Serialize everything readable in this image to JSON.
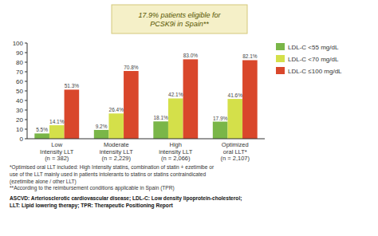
{
  "chart_data": {
    "type": "bar",
    "categories": [
      "Low\nIntensity LLT\n(n = 382)",
      "Moderate\nintensity LLT\n(n = 2,229)",
      "High\nintensity LLT\n(n = 2,066)",
      "Optimized\noral LLT*\n(n = 2,107)"
    ],
    "series": [
      {
        "name": "LDL-C <55 mg/dL",
        "color": "#7ab648",
        "values": [
          5.5,
          9.2,
          18.1,
          17.9
        ],
        "value_labels": [
          "5.5%",
          "9.2%",
          "18.1%",
          "17.9%"
        ]
      },
      {
        "name": "LDL-C <70 mg/dL",
        "color": "#d4e04a",
        "values": [
          14.1,
          26.4,
          42.1,
          41.6
        ],
        "value_labels": [
          "14.1%",
          "26.4%",
          "42.1%",
          "41.6%"
        ]
      },
      {
        "name": "LDL-C ≤100 mg/dL",
        "color": "#d9472b",
        "values": [
          51.3,
          70.8,
          83.0,
          82.1
        ],
        "value_labels": [
          "51.3%",
          "70.8%",
          "83.0%",
          "82.1%"
        ]
      }
    ],
    "ylim": [
      0,
      100
    ],
    "yticks": [
      0,
      10,
      20,
      30,
      40,
      50,
      60,
      70,
      80,
      90,
      100
    ],
    "grid": false,
    "legend": "right",
    "data_labels": true,
    "annotations": [
      "17.9% patients eligible for\nPCSK9i in Spain**"
    ],
    "footnotes": [
      "*Optimised oral LLT included: High Intensity statins, combination of statin + ezetimibe or\nuse of the LLT mainly used in patients intolerants to statins or statins contraindicated\n(ezetimibe alone / other LLT)\n**According to the reimbursement conditions applicable in Spain (TPR)",
      "ASCVD: Arteriosclerotic cardiovascular disease; LDL-C: Low density lipoprotein-cholesterol;\nLLT: Lipid lowering therapy; TPR: Therapeutic Positioning Report"
    ]
  }
}
